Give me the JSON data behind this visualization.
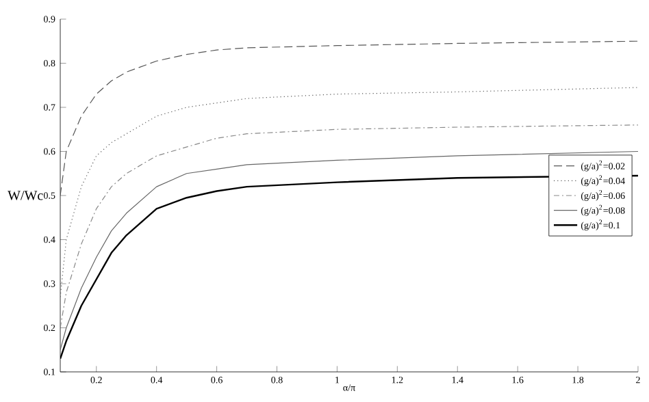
{
  "chart_data": {
    "type": "line",
    "xlabel": "α/π",
    "ylabel": "W/Wc",
    "x": [
      0.08,
      0.1,
      0.15,
      0.2,
      0.25,
      0.3,
      0.4,
      0.5,
      0.6,
      0.7,
      1.0,
      1.4,
      2.0
    ],
    "series": [
      {
        "name": "(g/a)$^{2}$=0.02",
        "color": "#555555",
        "line_style": "dashed",
        "values": [
          0.5,
          0.6,
          0.68,
          0.73,
          0.76,
          0.78,
          0.805,
          0.82,
          0.83,
          0.835,
          0.84,
          0.845,
          0.85
        ]
      },
      {
        "name": "(g/a)$^{2}$=0.04",
        "color": "#555555",
        "line_style": "dotted",
        "values": [
          0.27,
          0.4,
          0.52,
          0.59,
          0.62,
          0.64,
          0.68,
          0.7,
          0.71,
          0.72,
          0.73,
          0.735,
          0.745
        ]
      },
      {
        "name": "(g/a)$^{2}$=0.06",
        "color": "#888888",
        "line_style": "dashdot",
        "values": [
          0.2,
          0.28,
          0.39,
          0.47,
          0.52,
          0.55,
          0.59,
          0.61,
          0.63,
          0.64,
          0.65,
          0.655,
          0.66
        ]
      },
      {
        "name": "(g/a)$^{2}$=0.08",
        "color": "#666666",
        "line_style": "solid",
        "values": [
          0.15,
          0.2,
          0.29,
          0.36,
          0.42,
          0.46,
          0.52,
          0.55,
          0.56,
          0.57,
          0.58,
          0.59,
          0.6
        ]
      },
      {
        "name": "(g/a)$^{2}$=0.1",
        "color": "#000000",
        "line_style": "solid",
        "values": [
          0.13,
          0.17,
          0.25,
          0.31,
          0.37,
          0.41,
          0.47,
          0.495,
          0.51,
          0.52,
          0.53,
          0.54,
          0.545
        ]
      }
    ],
    "xlim": [
      0.08,
      2
    ],
    "ylim": [
      0.1,
      0.9
    ],
    "xticks": [
      0.2,
      0.4,
      0.6,
      0.8,
      1,
      1.2,
      1.4,
      1.6,
      1.8,
      2
    ],
    "yticks": [
      0.1,
      0.2,
      0.3,
      0.4,
      0.5,
      0.6,
      0.7,
      0.8,
      0.9
    ],
    "grid": false,
    "legend": "right",
    "marker": "none"
  }
}
